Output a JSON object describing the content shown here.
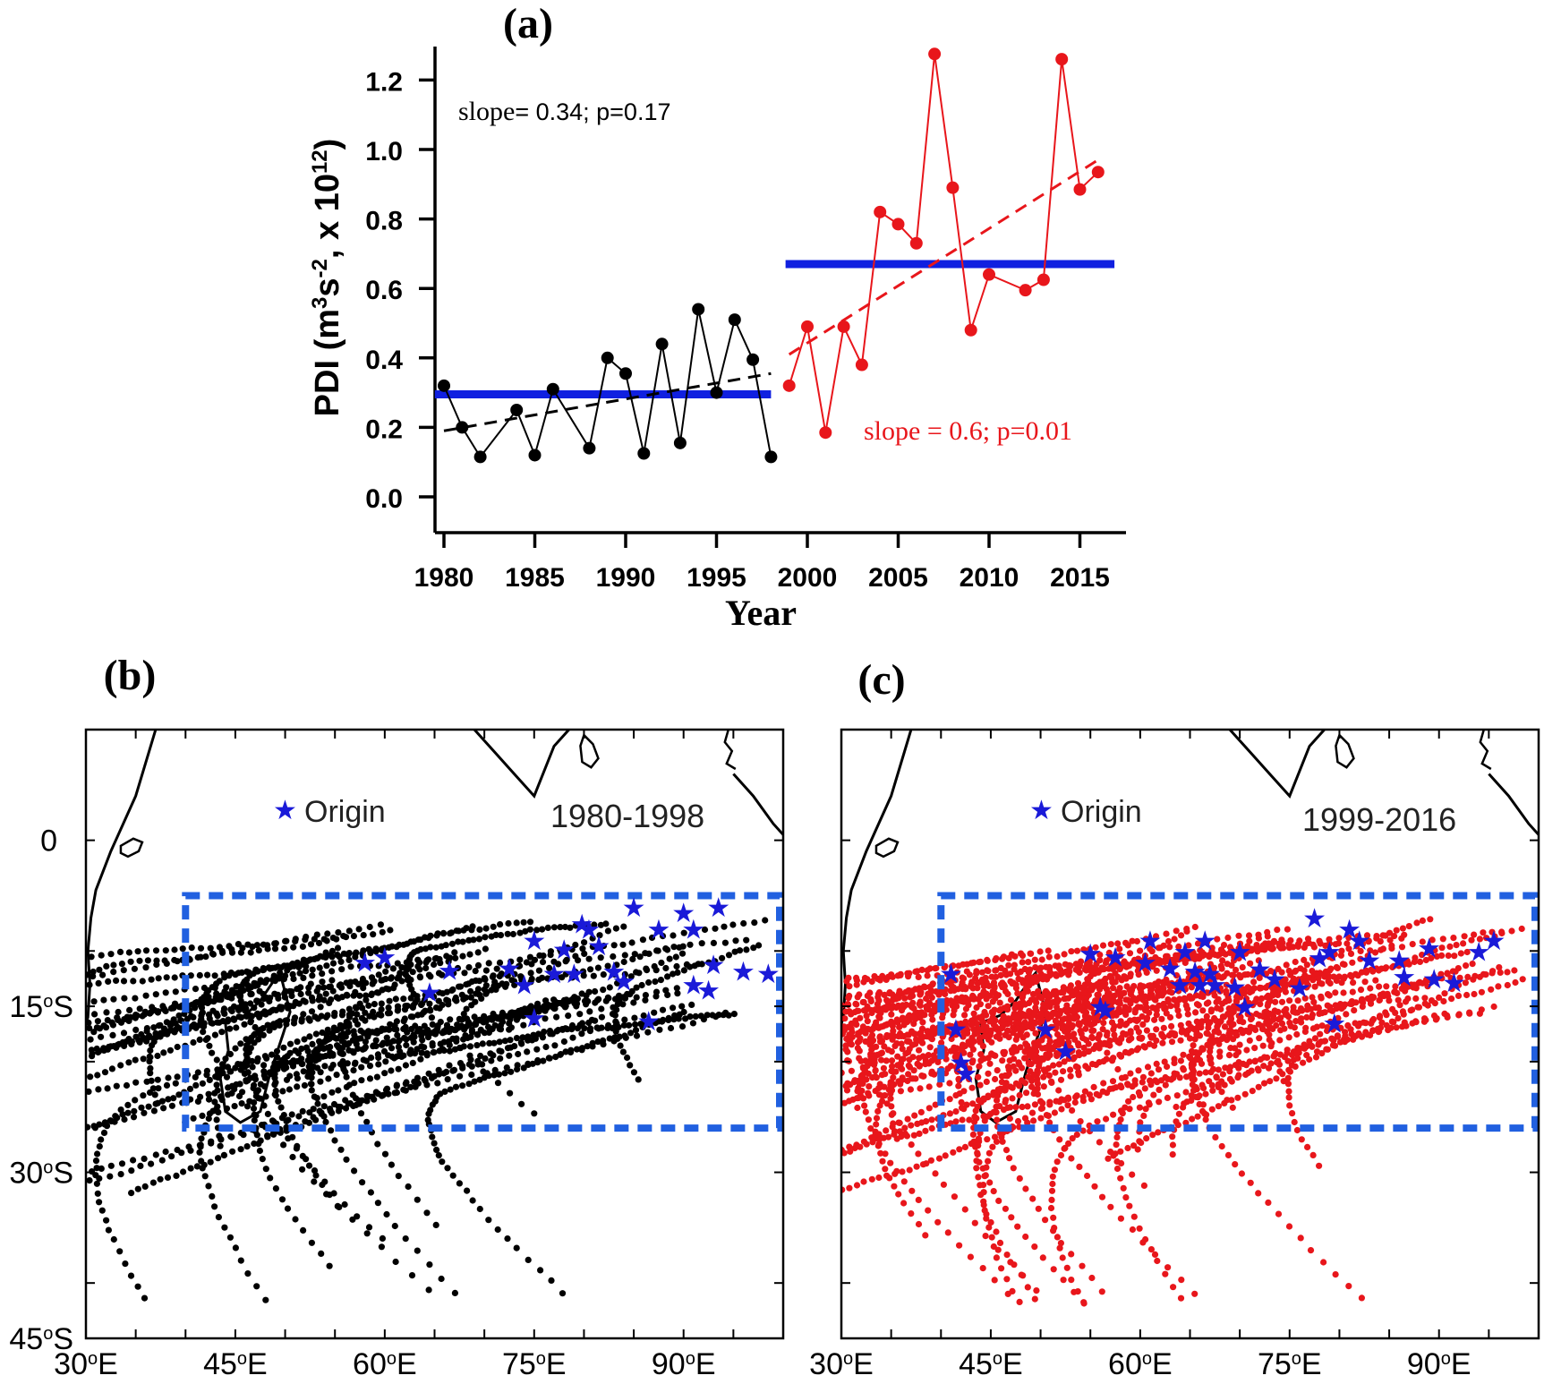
{
  "panels": {
    "a": {
      "label": "(a)"
    },
    "b": {
      "label": "(b)",
      "legend": "Origin",
      "period": "1980-1998"
    },
    "c": {
      "label": "(c)",
      "legend": "Origin",
      "period": "1999-2016"
    }
  },
  "chart_data": [
    {
      "type": "line",
      "xlabel": "Year",
      "ylabel_parts": [
        "PDI (m",
        "3",
        "s",
        "-2",
        ", x 10",
        "12",
        ")"
      ],
      "xlim": [
        1979.5,
        2017.5
      ],
      "ylim": [
        -0.1,
        1.3
      ],
      "xticks": [
        1980,
        1985,
        1990,
        1995,
        2000,
        2005,
        2010,
        2015
      ],
      "yticks": [
        "0.0",
        "0.2",
        "0.4",
        "0.6",
        "0.8",
        "1.0",
        "1.2"
      ],
      "series": [
        {
          "color": "#000000",
          "points": [
            [
              1980,
              0.32
            ],
            [
              1981,
              0.2
            ],
            [
              1982,
              0.115
            ],
            [
              1984,
              0.25
            ],
            [
              1985,
              0.12
            ],
            [
              1986,
              0.31
            ],
            [
              1988,
              0.14
            ],
            [
              1989,
              0.4
            ],
            [
              1990,
              0.355
            ],
            [
              1991,
              0.125
            ],
            [
              1992,
              0.44
            ],
            [
              1993,
              0.155
            ],
            [
              1994,
              0.54
            ],
            [
              1995,
              0.3
            ],
            [
              1996,
              0.51
            ],
            [
              1997,
              0.395
            ],
            [
              1998,
              0.115
            ]
          ],
          "trend": [
            [
              1980,
              0.19
            ],
            [
              1998,
              0.355
            ]
          ],
          "mean": {
            "value": 0.295,
            "x": [
              1979.5,
              1998.0
            ]
          },
          "annotation_prefix": "slope",
          "annotation_rest": "= 0.34; p=0.17"
        },
        {
          "color": "#e8161b",
          "points": [
            [
              1999,
              0.32
            ],
            [
              2000,
              0.49
            ],
            [
              2001,
              0.185
            ],
            [
              2002,
              0.49
            ],
            [
              2003,
              0.38
            ],
            [
              2004,
              0.82
            ],
            [
              2005,
              0.785
            ],
            [
              2006,
              0.73
            ],
            [
              2007,
              1.275
            ],
            [
              2008,
              0.89
            ],
            [
              2009,
              0.48
            ],
            [
              2010,
              0.64
            ],
            [
              2012,
              0.595
            ],
            [
              2013,
              0.625
            ],
            [
              2014,
              1.26
            ],
            [
              2015,
              0.885
            ],
            [
              2016,
              0.935
            ]
          ],
          "trend": [
            [
              1999,
              0.41
            ],
            [
              2016,
              0.97
            ]
          ],
          "mean": {
            "value": 0.67,
            "x": [
              1998.8,
              2016.9
            ]
          },
          "annotation": "slope = 0.6; p=0.01"
        }
      ],
      "mean_line_color": "#1020e0"
    },
    {
      "type": "map",
      "panel": "b",
      "lon_range": [
        30,
        100
      ],
      "lat_range": [
        -45,
        10
      ],
      "xticks": [
        "30",
        "45",
        "60",
        "75",
        "90"
      ],
      "yticks": [
        "0",
        "15",
        "30",
        "45"
      ],
      "lon_suffix": "E",
      "lat_suffix": "S",
      "box": {
        "lon": [
          40,
          100
        ],
        "lat": [
          -5,
          -26
        ]
      },
      "track_color": "#000000",
      "origins": [
        [
          58,
          -11
        ],
        [
          60,
          -10.5
        ],
        [
          64.5,
          -13.7
        ],
        [
          66.5,
          -11.7
        ],
        [
          72.5,
          -11.5
        ],
        [
          74,
          -13
        ],
        [
          75,
          -9
        ],
        [
          75,
          -16
        ],
        [
          77,
          -12
        ],
        [
          78,
          -9.8
        ],
        [
          79,
          -12
        ],
        [
          79.8,
          -7.5
        ],
        [
          80.5,
          -8
        ],
        [
          81.5,
          -9.5
        ],
        [
          83,
          -11.8
        ],
        [
          84,
          -12.7
        ],
        [
          85,
          -6
        ],
        [
          86.5,
          -16.3
        ],
        [
          87.5,
          -8
        ],
        [
          90,
          -6.5
        ],
        [
          91,
          -8
        ],
        [
          91,
          -13
        ],
        [
          92.5,
          -13.5
        ],
        [
          93,
          -11.2
        ],
        [
          93.5,
          -6
        ],
        [
          96,
          -11.8
        ],
        [
          98.5,
          -12
        ]
      ]
    },
    {
      "type": "map",
      "panel": "c",
      "lon_range": [
        30,
        100
      ],
      "lat_range": [
        -45,
        10
      ],
      "xticks": [
        "30",
        "45",
        "60",
        "75",
        "90"
      ],
      "yticks": [
        "0",
        "15",
        "30",
        "45"
      ],
      "lon_suffix": "E",
      "lat_suffix": "S",
      "box": {
        "lon": [
          40,
          100
        ],
        "lat": [
          -5,
          -26
        ]
      },
      "track_color": "#e8161b",
      "origins": [
        [
          41,
          -12
        ],
        [
          41.5,
          -17
        ],
        [
          42,
          -20
        ],
        [
          42.5,
          -21
        ],
        [
          50.5,
          -17
        ],
        [
          52.5,
          -19
        ],
        [
          55,
          -10.2
        ],
        [
          56,
          -15
        ],
        [
          56.5,
          -15.3
        ],
        [
          57.5,
          -10.5
        ],
        [
          60.5,
          -11
        ],
        [
          61,
          -9
        ],
        [
          63,
          -11.5
        ],
        [
          64,
          -13
        ],
        [
          64.5,
          -10
        ],
        [
          65.5,
          -11.8
        ],
        [
          66,
          -13
        ],
        [
          66.5,
          -9
        ],
        [
          67,
          -12
        ],
        [
          67.5,
          -13
        ],
        [
          69.5,
          -13.2
        ],
        [
          70,
          -10
        ],
        [
          70.5,
          -15
        ],
        [
          72,
          -11.6
        ],
        [
          73.5,
          -12.5
        ],
        [
          76,
          -13.3
        ],
        [
          77.5,
          -7
        ],
        [
          78,
          -10.6
        ],
        [
          79,
          -10
        ],
        [
          79.5,
          -16.5
        ],
        [
          81,
          -8
        ],
        [
          82,
          -9
        ],
        [
          83,
          -10.8
        ],
        [
          86,
          -10.8
        ],
        [
          86.5,
          -12.3
        ],
        [
          89,
          -9.7
        ],
        [
          89.5,
          -12.5
        ],
        [
          91.5,
          -12.8
        ],
        [
          94,
          -10
        ],
        [
          95.5,
          -9
        ]
      ]
    }
  ]
}
